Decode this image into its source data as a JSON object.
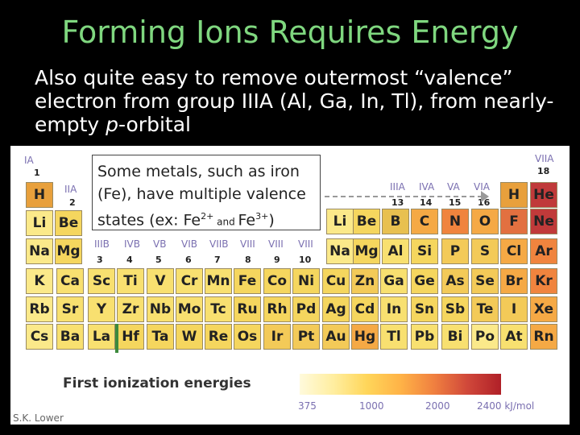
{
  "slide": {
    "title": "Forming Ions Requires Energy",
    "body_part1": "Also quite easy to remove outermost “valence” electron  from group IIIA (Al, Ga, In, Tl), from nearly-empty ",
    "body_italic": "p",
    "body_part2": "-orbital"
  },
  "callout": {
    "line1": "Some metals, such as iron",
    "line2": "(Fe), have multiple valence",
    "line3_a": "states (ex: Fe",
    "sup1": "2+",
    "line3_b": " and ",
    "line3_c": "Fe",
    "sup2": "3+",
    "line3_d": ")"
  },
  "figure": {
    "group_labels": {
      "IA": "IA",
      "g1": "1",
      "IIA": "IIA",
      "g2": "2",
      "IIIB": "IIIB",
      "g3": "3",
      "IVB": "IVB",
      "g4": "4",
      "VB": "VB",
      "g5": "5",
      "VIB": "VIB",
      "g6": "6",
      "VIIB": "VIIB",
      "g7": "7",
      "VIII_a": "VIII",
      "g8": "8",
      "VIII_b": "VIII",
      "g9": "9",
      "VIII_c": "VIII",
      "g10": "10",
      "IIIA": "IIIA",
      "g13": "13",
      "IVA": "IVA",
      "g14": "14",
      "VA": "VA",
      "g15": "15",
      "VIA": "VIA",
      "g16": "16",
      "VIIA": "VIIA",
      "g18": "18"
    },
    "gradient_title": "First ionization energies",
    "ticks": [
      "375",
      "1000",
      "2000",
      "2400 kJ/mol"
    ],
    "credit": "S.K. Lower",
    "colors": {
      "c1": "#e8a03c",
      "c2": "#f3ca58",
      "c3": "#f5d65e",
      "c4": "#f8e070",
      "c5": "#fbe98a",
      "c6": "#e8c050",
      "c7": "#f5a945",
      "c8": "#f0843e",
      "c9": "#e27040",
      "c10": "#c03a3a"
    },
    "cells": [
      {
        "sym": "H",
        "c": "c1"
      },
      {
        "sym": "Li",
        "c": "c5"
      },
      {
        "sym": "Be",
        "c": "c3"
      },
      {
        "sym": "Na",
        "c": "c5"
      },
      {
        "sym": "Mg",
        "c": "c3"
      },
      {
        "sym": "K",
        "c": "c5"
      },
      {
        "sym": "Ca",
        "c": "c4"
      },
      {
        "sym": "Sc",
        "c": "c4"
      },
      {
        "sym": "Ti",
        "c": "c4"
      },
      {
        "sym": "V",
        "c": "c4"
      },
      {
        "sym": "Cr",
        "c": "c4"
      },
      {
        "sym": "Mn",
        "c": "c4"
      },
      {
        "sym": "Fe",
        "c": "c3"
      },
      {
        "sym": "Co",
        "c": "c3"
      },
      {
        "sym": "Ni",
        "c": "c3"
      },
      {
        "sym": "Cu",
        "c": "c3"
      },
      {
        "sym": "Zn",
        "c": "c2"
      },
      {
        "sym": "Ga",
        "c": "c4"
      },
      {
        "sym": "Ge",
        "c": "c3"
      },
      {
        "sym": "As",
        "c": "c2"
      },
      {
        "sym": "Se",
        "c": "c2"
      },
      {
        "sym": "Br",
        "c": "c7"
      },
      {
        "sym": "Kr",
        "c": "c8"
      },
      {
        "sym": "Rb",
        "c": "c5"
      },
      {
        "sym": "Sr",
        "c": "c4"
      },
      {
        "sym": "Y",
        "c": "c4"
      },
      {
        "sym": "Zr",
        "c": "c4"
      },
      {
        "sym": "Nb",
        "c": "c4"
      },
      {
        "sym": "Mo",
        "c": "c4"
      },
      {
        "sym": "Tc",
        "c": "c4"
      },
      {
        "sym": "Ru",
        "c": "c3"
      },
      {
        "sym": "Rh",
        "c": "c3"
      },
      {
        "sym": "Pd",
        "c": "c3"
      },
      {
        "sym": "Ag",
        "c": "c3"
      },
      {
        "sym": "Cd",
        "c": "c3"
      },
      {
        "sym": "In",
        "c": "c4"
      },
      {
        "sym": "Sn",
        "c": "c3"
      },
      {
        "sym": "Sb",
        "c": "c3"
      },
      {
        "sym": "Te",
        "c": "c2"
      },
      {
        "sym": "I",
        "c": "c2"
      },
      {
        "sym": "Xe",
        "c": "c7"
      },
      {
        "sym": "Cs",
        "c": "c5"
      },
      {
        "sym": "Ba",
        "c": "c4"
      },
      {
        "sym": "La",
        "c": "c4"
      },
      {
        "sym": "Hf",
        "c": "c3"
      },
      {
        "sym": "Ta",
        "c": "c3"
      },
      {
        "sym": "W",
        "c": "c3"
      },
      {
        "sym": "Re",
        "c": "c3"
      },
      {
        "sym": "Os",
        "c": "c3"
      },
      {
        "sym": "Ir",
        "c": "c2"
      },
      {
        "sym": "Pt",
        "c": "c2"
      },
      {
        "sym": "Au",
        "c": "c2"
      },
      {
        "sym": "Hg",
        "c": "c7"
      },
      {
        "sym": "Tl",
        "c": "c4"
      },
      {
        "sym": "Pb",
        "c": "c4"
      },
      {
        "sym": "Bi",
        "c": "c4"
      },
      {
        "sym": "Po",
        "c": "c5"
      },
      {
        "sym": "At",
        "c": "c4"
      },
      {
        "sym": "Rn",
        "c": "c7"
      },
      {
        "sym": "Li",
        "c": "c5"
      },
      {
        "sym": "Be",
        "c": "c3"
      },
      {
        "sym": "B",
        "c": "c6"
      },
      {
        "sym": "C",
        "c": "c7"
      },
      {
        "sym": "N",
        "c": "c8"
      },
      {
        "sym": "O",
        "c": "c7"
      },
      {
        "sym": "F",
        "c": "c9"
      },
      {
        "sym": "Ne",
        "c": "c10"
      },
      {
        "sym": "Na",
        "c": "c5"
      },
      {
        "sym": "Mg",
        "c": "c3"
      },
      {
        "sym": "Al",
        "c": "c4"
      },
      {
        "sym": "Si",
        "c": "c3"
      },
      {
        "sym": "P",
        "c": "c2"
      },
      {
        "sym": "S",
        "c": "c2"
      },
      {
        "sym": "Cl",
        "c": "c7"
      },
      {
        "sym": "Ar",
        "c": "c8"
      },
      {
        "sym": "H",
        "c": "c1"
      },
      {
        "sym": "He",
        "c": "c10"
      }
    ]
  }
}
